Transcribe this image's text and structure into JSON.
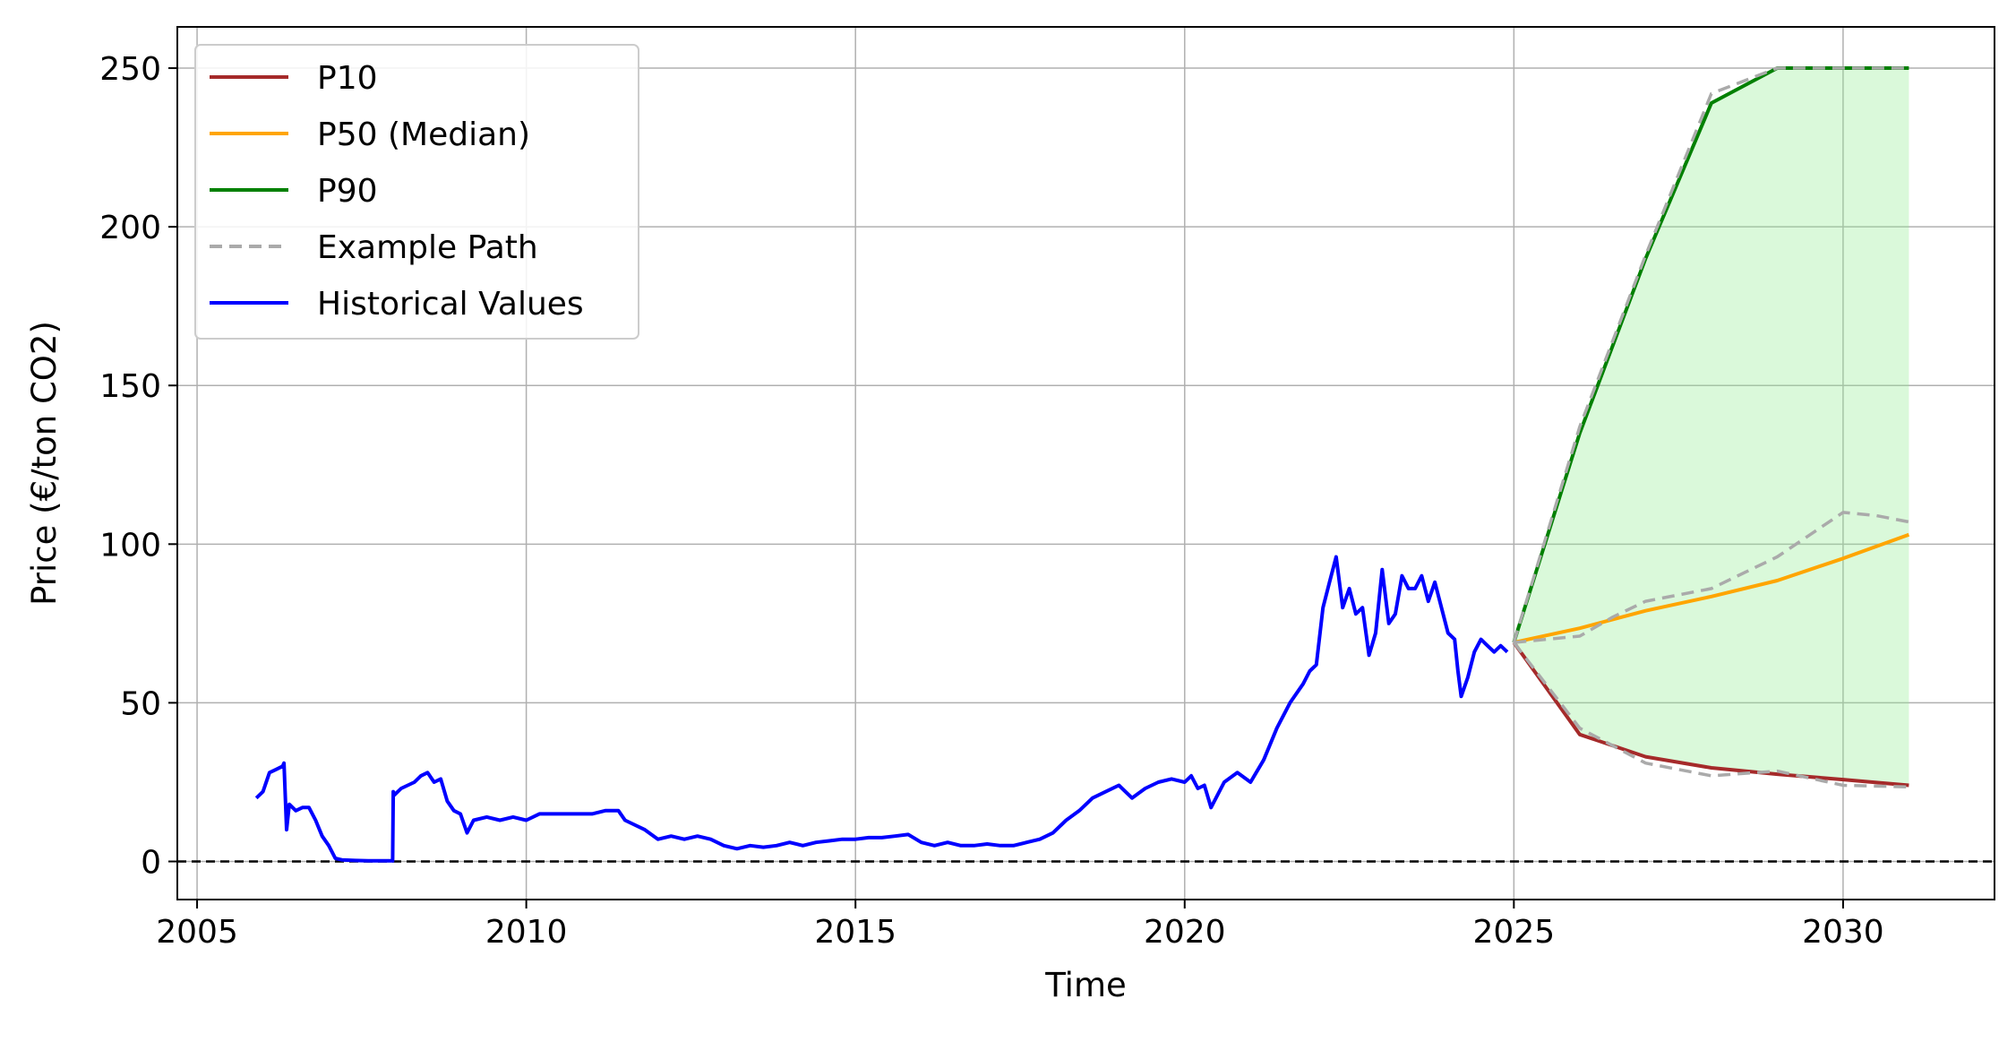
{
  "chart_data": {
    "type": "line",
    "xlabel": "Time",
    "ylabel": "Price (€/ton CO2)",
    "xlim": [
      2004.7,
      2032.3
    ],
    "ylim": [
      -12,
      263
    ],
    "xticks": [
      2005,
      2010,
      2015,
      2020,
      2025,
      2030
    ],
    "yticks": [
      0,
      50,
      100,
      150,
      200,
      250
    ],
    "grid": true,
    "legend_position": "top-left",
    "reference_line": {
      "y": 0,
      "style": "dashed",
      "color": "#000000"
    },
    "band": {
      "between": [
        "P10",
        "P90"
      ],
      "color": "#90ee90"
    },
    "series": [
      {
        "name": "P10",
        "color": "#a52a2a",
        "style": "solid",
        "x": [
          2025,
          2026,
          2027,
          2028,
          2029,
          2030,
          2031
        ],
        "y": [
          69,
          40,
          33,
          29.5,
          27.5,
          25.8,
          24
        ]
      },
      {
        "name": "P50 (Median)",
        "color": "#ffa500",
        "style": "solid",
        "x": [
          2025,
          2026,
          2027,
          2028,
          2029,
          2030,
          2031
        ],
        "y": [
          69,
          73.5,
          79,
          83.5,
          88.5,
          95.5,
          103
        ]
      },
      {
        "name": "P90",
        "color": "#008000",
        "style": "solid",
        "x": [
          2025,
          2026,
          2027,
          2028,
          2029,
          2030,
          2031
        ],
        "y": [
          69,
          135,
          190,
          239,
          250,
          250,
          250
        ]
      },
      {
        "name": "Example Path",
        "color": "#aaaaaa",
        "style": "dashed",
        "x": [
          2025,
          2026,
          2026.5,
          2027,
          2027.5,
          2028,
          2028.5,
          2029,
          2029.5,
          2030,
          2030.5,
          2031
        ],
        "y": [
          69,
          71,
          77,
          82,
          84,
          86,
          91,
          96,
          103,
          110,
          109,
          107
        ]
      },
      {
        "name": "Example Path (lower)",
        "color": "#aaaaaa",
        "style": "dashed",
        "x": [
          2025,
          2026,
          2027,
          2028,
          2029,
          2030,
          2031
        ],
        "y": [
          69,
          42,
          31,
          27,
          28.5,
          24,
          23.5
        ]
      },
      {
        "name": "Example Path (upper)",
        "color": "#aaaaaa",
        "style": "dashed",
        "x": [
          2025,
          2026,
          2027,
          2028,
          2029,
          2030,
          2031
        ],
        "y": [
          69,
          137,
          191,
          242,
          250,
          250,
          250
        ]
      },
      {
        "name": "Historical Values",
        "color": "#0000ff",
        "style": "solid",
        "x": [
          2005.9,
          2006.0,
          2006.1,
          2006.2,
          2006.3,
          2006.32,
          2006.36,
          2006.4,
          2006.5,
          2006.6,
          2006.7,
          2006.8,
          2006.9,
          2007.0,
          2007.1,
          2007.2,
          2007.4,
          2007.6,
          2007.8,
          2007.97,
          2007.98,
          2008.0,
          2008.1,
          2008.2,
          2008.3,
          2008.4,
          2008.5,
          2008.6,
          2008.7,
          2008.8,
          2008.9,
          2009.0,
          2009.1,
          2009.2,
          2009.4,
          2009.6,
          2009.8,
          2010.0,
          2010.2,
          2010.4,
          2010.6,
          2010.8,
          2011.0,
          2011.2,
          2011.4,
          2011.5,
          2011.6,
          2011.8,
          2012.0,
          2012.2,
          2012.4,
          2012.6,
          2012.8,
          2013.0,
          2013.2,
          2013.4,
          2013.6,
          2013.8,
          2014.0,
          2014.2,
          2014.4,
          2014.6,
          2014.8,
          2015.0,
          2015.2,
          2015.4,
          2015.6,
          2015.8,
          2016.0,
          2016.2,
          2016.4,
          2016.6,
          2016.8,
          2017.0,
          2017.2,
          2017.4,
          2017.6,
          2017.8,
          2018.0,
          2018.2,
          2018.4,
          2018.6,
          2018.8,
          2019.0,
          2019.2,
          2019.4,
          2019.6,
          2019.8,
          2020.0,
          2020.1,
          2020.2,
          2020.3,
          2020.4,
          2020.6,
          2020.8,
          2021.0,
          2021.2,
          2021.4,
          2021.6,
          2021.8,
          2021.9,
          2022.0,
          2022.1,
          2022.2,
          2022.3,
          2022.4,
          2022.5,
          2022.6,
          2022.7,
          2022.8,
          2022.9,
          2023.0,
          2023.1,
          2023.2,
          2023.3,
          2023.4,
          2023.5,
          2023.6,
          2023.7,
          2023.8,
          2023.9,
          2024.0,
          2024.1,
          2024.15,
          2024.2,
          2024.3,
          2024.4,
          2024.5,
          2024.6,
          2024.7,
          2024.8,
          2024.9
        ],
        "y": [
          20,
          22,
          28,
          29,
          30,
          31,
          10,
          18,
          16,
          17,
          17,
          13,
          8,
          5,
          1,
          0.5,
          0.3,
          0.2,
          0.2,
          0.2,
          22,
          21,
          23,
          24,
          25,
          27,
          28,
          25,
          26,
          19,
          16,
          15,
          9,
          13,
          14,
          13,
          14,
          13,
          15,
          15,
          15,
          15,
          15,
          16,
          16,
          13,
          12,
          10,
          7,
          8,
          7,
          8,
          7,
          5,
          4,
          5,
          4.5,
          5,
          6,
          5,
          6,
          6.5,
          7,
          7,
          7.5,
          7.5,
          8,
          8.5,
          6,
          5,
          6,
          5,
          5,
          5.5,
          5,
          5,
          6,
          7,
          9,
          13,
          16,
          20,
          22,
          24,
          20,
          23,
          25,
          26,
          25,
          27,
          23,
          24,
          17,
          25,
          28,
          25,
          32,
          42,
          50,
          56,
          60,
          62,
          80,
          88,
          96,
          80,
          86,
          78,
          80,
          65,
          72,
          92,
          75,
          78,
          90,
          86,
          86,
          90,
          82,
          88,
          80,
          72,
          70,
          60,
          52,
          58,
          66,
          70,
          68,
          66,
          68,
          66
        ]
      }
    ],
    "legend": [
      {
        "label": "P10",
        "color": "#a52a2a",
        "style": "solid"
      },
      {
        "label": "P50 (Median)",
        "color": "#ffa500",
        "style": "solid"
      },
      {
        "label": "P90",
        "color": "#008000",
        "style": "solid"
      },
      {
        "label": "Example Path",
        "color": "#aaaaaa",
        "style": "dashed"
      },
      {
        "label": "Historical Values",
        "color": "#0000ff",
        "style": "solid"
      }
    ]
  }
}
